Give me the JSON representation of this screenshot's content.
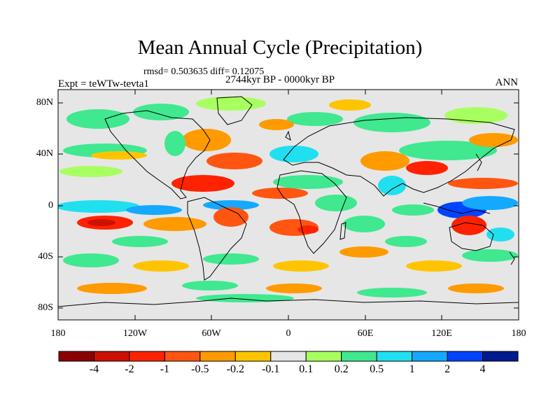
{
  "title": "Mean Annual Cycle (Precipitation)",
  "stats_line": "rmsd= 0.503635 diff= 0.12075",
  "experiment_label": "Expt = teWTw-tevta1",
  "period_label": "2744kyr BP - 0000kyr BP",
  "season_label": "ANN",
  "lat_axis": [
    "80N",
    "40N",
    "0",
    "40S",
    "80S"
  ],
  "lon_axis": [
    "180",
    "120W",
    "60W",
    "0",
    "60E",
    "120E",
    "180"
  ],
  "colorbar": {
    "labels": [
      "-4",
      "-2",
      "-1",
      "-0.5",
      "-0.2",
      "-0.1",
      "0.1",
      "0.2",
      "0.5",
      "1",
      "2",
      "4"
    ],
    "colors": [
      "#8b0000",
      "#cc1100",
      "#ff2200",
      "#ff5511",
      "#ff9a00",
      "#ffc400",
      "#e6e6e6",
      "#a8ff60",
      "#40e890",
      "#20e0f0",
      "#15a8ff",
      "#0044ff",
      "#001a90"
    ]
  },
  "map_colors": {
    "background": "#e6e6e6",
    "coast": "#000000"
  }
}
